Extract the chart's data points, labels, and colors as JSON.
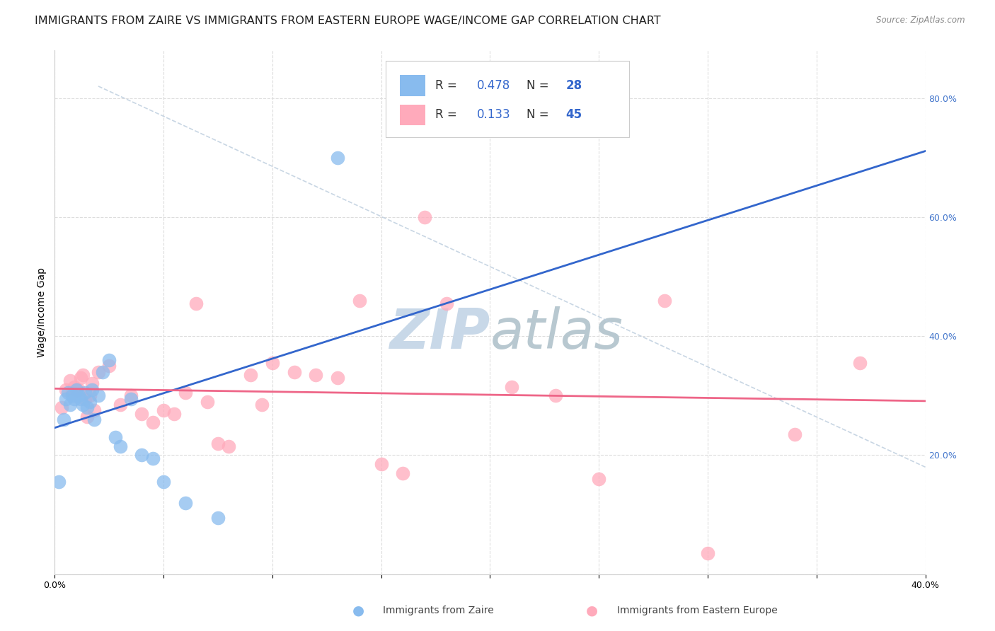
{
  "title": "IMMIGRANTS FROM ZAIRE VS IMMIGRANTS FROM EASTERN EUROPE WAGE/INCOME GAP CORRELATION CHART",
  "source": "Source: ZipAtlas.com",
  "xlabel_zaire": "Immigrants from Zaire",
  "xlabel_eastern": "Immigrants from Eastern Europe",
  "ylabel": "Wage/Income Gap",
  "xlim": [
    0.0,
    0.4
  ],
  "ylim": [
    0.0,
    0.88
  ],
  "yticks": [
    0.0,
    0.2,
    0.4,
    0.6,
    0.8
  ],
  "ytick_labels": [
    "",
    "20.0%",
    "40.0%",
    "60.0%",
    "80.0%"
  ],
  "xticks": [
    0.0,
    0.05,
    0.1,
    0.15,
    0.2,
    0.25,
    0.3,
    0.35,
    0.4
  ],
  "xtick_labels": [
    "0.0%",
    "",
    "",
    "",
    "",
    "",
    "",
    "",
    "40.0%"
  ],
  "R_zaire": 0.478,
  "N_zaire": 28,
  "R_eastern": 0.133,
  "N_eastern": 45,
  "color_zaire": "#88BBEE",
  "color_eastern": "#FFAABb",
  "trend_color_zaire": "#3366CC",
  "trend_color_eastern": "#EE6688",
  "watermark_color": "#C8D8E8",
  "background_color": "#FFFFFF",
  "grid_color": "#DDDDDD",
  "zaire_x": [
    0.002,
    0.004,
    0.005,
    0.006,
    0.007,
    0.008,
    0.009,
    0.01,
    0.011,
    0.012,
    0.013,
    0.014,
    0.015,
    0.016,
    0.017,
    0.018,
    0.02,
    0.022,
    0.025,
    0.028,
    0.03,
    0.035,
    0.04,
    0.045,
    0.05,
    0.06,
    0.075,
    0.13
  ],
  "zaire_y": [
    0.155,
    0.26,
    0.295,
    0.305,
    0.285,
    0.3,
    0.295,
    0.31,
    0.3,
    0.295,
    0.285,
    0.305,
    0.28,
    0.29,
    0.31,
    0.26,
    0.3,
    0.34,
    0.36,
    0.23,
    0.215,
    0.295,
    0.2,
    0.195,
    0.155,
    0.12,
    0.095,
    0.7
  ],
  "eastern_x": [
    0.003,
    0.005,
    0.007,
    0.008,
    0.009,
    0.01,
    0.011,
    0.012,
    0.013,
    0.014,
    0.015,
    0.016,
    0.017,
    0.018,
    0.02,
    0.025,
    0.03,
    0.035,
    0.04,
    0.045,
    0.05,
    0.055,
    0.06,
    0.065,
    0.07,
    0.075,
    0.08,
    0.09,
    0.095,
    0.1,
    0.11,
    0.12,
    0.13,
    0.14,
    0.15,
    0.16,
    0.17,
    0.18,
    0.21,
    0.23,
    0.25,
    0.28,
    0.3,
    0.34,
    0.37
  ],
  "eastern_y": [
    0.28,
    0.31,
    0.325,
    0.305,
    0.315,
    0.31,
    0.31,
    0.33,
    0.335,
    0.295,
    0.265,
    0.3,
    0.32,
    0.275,
    0.34,
    0.35,
    0.285,
    0.3,
    0.27,
    0.255,
    0.275,
    0.27,
    0.305,
    0.455,
    0.29,
    0.22,
    0.215,
    0.335,
    0.285,
    0.355,
    0.34,
    0.335,
    0.33,
    0.46,
    0.185,
    0.17,
    0.6,
    0.455,
    0.315,
    0.3,
    0.16,
    0.46,
    0.035,
    0.235,
    0.355
  ],
  "title_fontsize": 11.5,
  "axis_label_fontsize": 10,
  "tick_fontsize": 9,
  "legend_fontsize": 12
}
